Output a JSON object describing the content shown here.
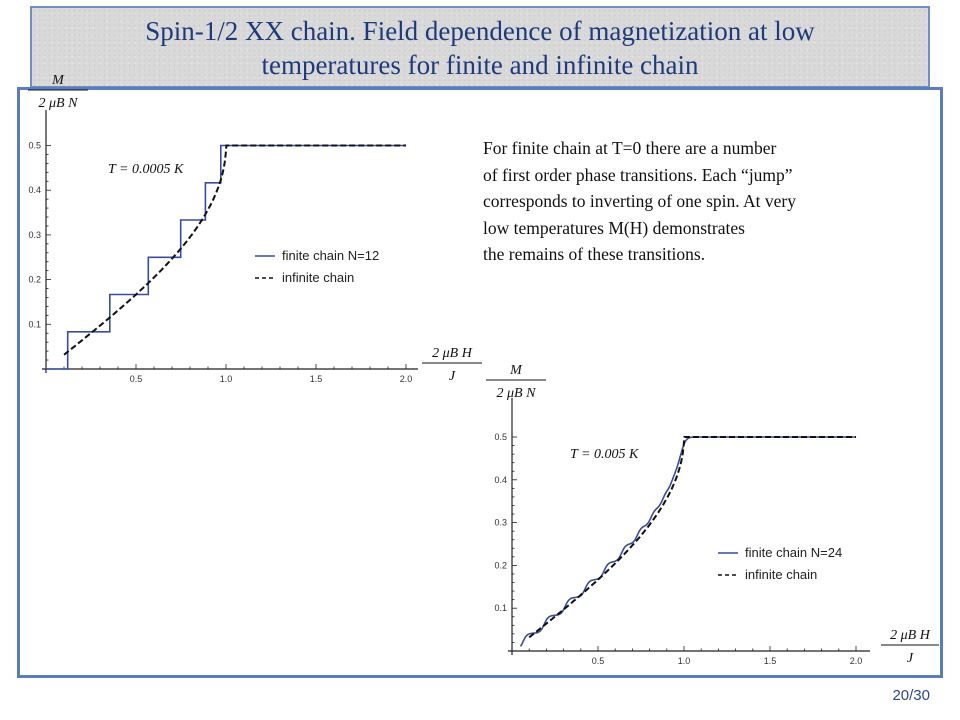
{
  "slide": {
    "title_lines": [
      "Spin-1/2 XX chain. Field dependence of magnetization at low",
      "temperatures for finite and infinite chain"
    ],
    "page_number": "20/30",
    "note_lines": [
      "For finite chain at T=0 there are  a number",
      "of first order phase transitions. Each “jump”",
      "corresponds to inverting of one spin. At very",
      "low temperatures M(H)  demonstrates",
      "the remains of these transitions."
    ]
  },
  "colors": {
    "finite": "#3a4ca0",
    "infinite": "#111111",
    "axis": "#222222"
  },
  "chart_data": [
    {
      "type": "line",
      "temperature_label": "T = 0.0005 K",
      "xlim": [
        0,
        2.0
      ],
      "ylim": [
        0,
        0.5
      ],
      "x_ticks": [
        "0.5",
        "1.0",
        "1.5",
        "2.0"
      ],
      "y_ticks": [
        "0.1",
        "0.2",
        "0.3",
        "0.4",
        "0.5"
      ],
      "ylabel": {
        "numerator": "M",
        "denominator": "2 μB N"
      },
      "xlabel": {
        "numerator": "2 μB H",
        "denominator": "J"
      },
      "legend_position": "middle-right",
      "series": [
        {
          "name": "finite chain N=12",
          "N": 12,
          "style": "solid",
          "shape": "steps"
        },
        {
          "name": "infinite chain",
          "style": "dashed",
          "shape": "curve"
        }
      ]
    },
    {
      "type": "line",
      "temperature_label": "T = 0.005 K",
      "xlim": [
        0,
        2.0
      ],
      "ylim": [
        0,
        0.5
      ],
      "x_ticks": [
        "0.5",
        "1.0",
        "1.5",
        "2.0"
      ],
      "y_ticks": [
        "0.1",
        "0.2",
        "0.3",
        "0.4",
        "0.5"
      ],
      "ylabel": {
        "numerator": "M",
        "denominator": "2 μB N"
      },
      "xlabel": {
        "numerator": "2 μB H",
        "denominator": "J"
      },
      "legend_position": "bottom-right",
      "series": [
        {
          "name": "finite chain N=24",
          "N": 24,
          "style": "solid",
          "shape": "smoothed-steps"
        },
        {
          "name": "infinite chain",
          "style": "dashed",
          "shape": "curve"
        }
      ]
    }
  ]
}
